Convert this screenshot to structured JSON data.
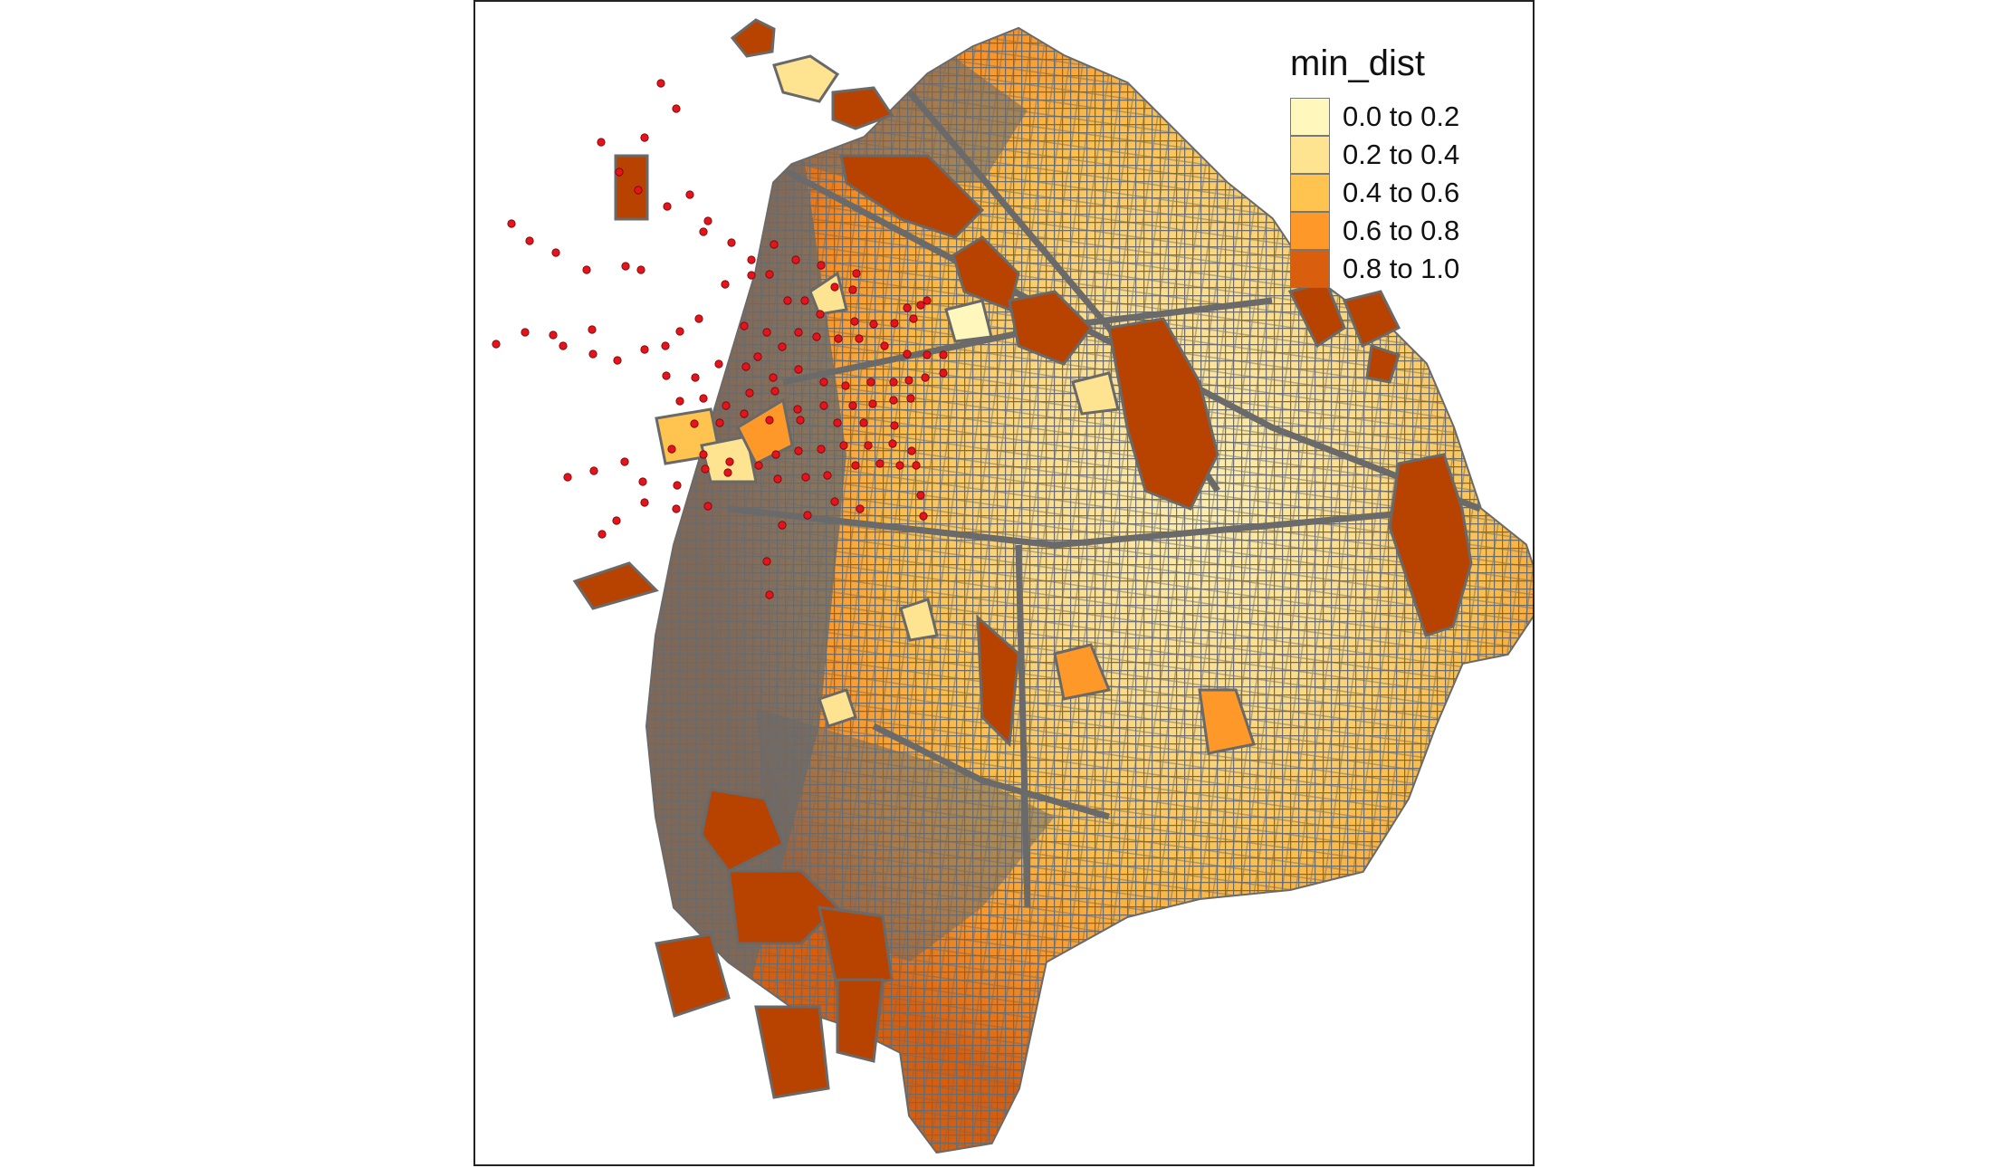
{
  "legend": {
    "title": "min_dist",
    "items": [
      {
        "label": "0.0 to 0.2",
        "color": "#FFF7BC"
      },
      {
        "label": "0.2 to 0.4",
        "color": "#FEE391"
      },
      {
        "label": "0.4 to 0.6",
        "color": "#FEC44F"
      },
      {
        "label": "0.6 to 0.8",
        "color": "#FE9929"
      },
      {
        "label": "0.8 to 1.0",
        "color": "#D95F0E"
      }
    ]
  },
  "map": {
    "street_color": "#696969",
    "point_color": "#E4141E",
    "far_color": "#B84300"
  }
}
